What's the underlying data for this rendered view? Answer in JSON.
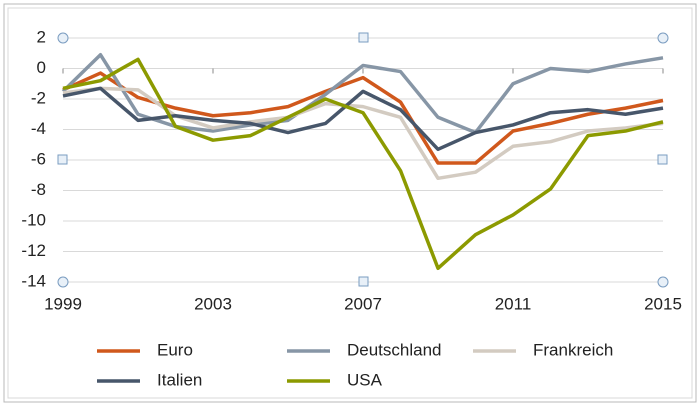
{
  "chart_data": {
    "type": "line",
    "x": [
      1999,
      2000,
      2001,
      2002,
      2003,
      2004,
      2005,
      2006,
      2007,
      2008,
      2009,
      2010,
      2011,
      2012,
      2013,
      2014,
      2015
    ],
    "series": [
      {
        "name": "Euro",
        "color": "#d0581c",
        "values": [
          -1.4,
          -0.3,
          -1.9,
          -2.6,
          -3.1,
          -2.9,
          -2.5,
          -1.5,
          -0.6,
          -2.2,
          -6.2,
          -6.2,
          -4.1,
          -3.6,
          -3.0,
          -2.6,
          -2.1
        ]
      },
      {
        "name": "Deutschland",
        "color": "#8796a6",
        "values": [
          -1.5,
          0.9,
          -3.0,
          -3.8,
          -4.1,
          -3.7,
          -3.4,
          -1.7,
          0.2,
          -0.2,
          -3.2,
          -4.2,
          -1.0,
          0.0,
          -0.2,
          0.3,
          0.7
        ]
      },
      {
        "name": "Frankreich",
        "color": "#d3cbc1",
        "values": [
          -1.6,
          -1.3,
          -1.4,
          -3.1,
          -3.9,
          -3.5,
          -3.2,
          -2.3,
          -2.5,
          -3.2,
          -7.2,
          -6.8,
          -5.1,
          -4.8,
          -4.1,
          -3.9,
          -3.6
        ]
      },
      {
        "name": "Italien",
        "color": "#47566a",
        "values": [
          -1.8,
          -1.3,
          -3.4,
          -3.1,
          -3.4,
          -3.6,
          -4.2,
          -3.6,
          -1.5,
          -2.7,
          -5.3,
          -4.2,
          -3.7,
          -2.9,
          -2.7,
          -3.0,
          -2.6
        ]
      },
      {
        "name": "USA",
        "color": "#8c9a00",
        "values": [
          -1.3,
          -0.8,
          0.6,
          -3.8,
          -4.7,
          -4.4,
          -3.2,
          -2.0,
          -2.9,
          -6.7,
          -13.1,
          -10.9,
          -9.6,
          -7.9,
          -4.4,
          -4.1,
          -3.5
        ]
      }
    ],
    "xlim": [
      1999,
      2015
    ],
    "xticks": [
      1999,
      2003,
      2007,
      2011,
      2015
    ],
    "ylim": [
      -14,
      2
    ],
    "yticks": [
      -14,
      -12,
      -10,
      -8,
      -6,
      -4,
      -2,
      0,
      2
    ],
    "grid": true,
    "legend": "bottom"
  }
}
